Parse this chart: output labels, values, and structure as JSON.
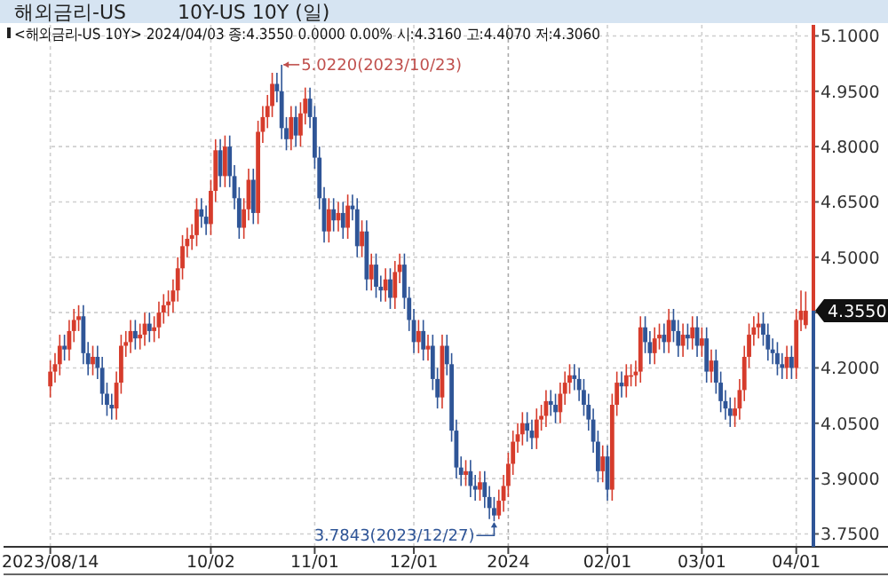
{
  "chart_data": {
    "type": "candlestick",
    "title": "해외금리-US",
    "subtitle": "10Y-US 10Y (일)",
    "annotations": [
      "<해외금리-US 10Y> 2024/04/03 종:4.3550 0.0000 0.00% 시:4.3160 고:4.4070 저:4.3060",
      "5.0220(2023/10/23)",
      "3.7843(2023/12/27)",
      "4.3550"
    ],
    "categories": [
      "2023/08/14",
      null,
      null,
      null,
      null,
      null,
      null,
      null,
      null,
      null,
      null,
      null,
      null,
      null,
      null,
      null,
      null,
      null,
      null,
      null,
      null,
      null,
      null,
      null,
      null,
      null,
      null,
      null,
      null,
      null,
      null,
      null,
      null,
      null,
      "10/02",
      null,
      null,
      null,
      null,
      null,
      null,
      null,
      null,
      null,
      null,
      null,
      null,
      null,
      null,
      null,
      null,
      null,
      null,
      null,
      null,
      null,
      "11/01",
      null,
      null,
      null,
      null,
      null,
      null,
      null,
      null,
      null,
      null,
      null,
      null,
      null,
      null,
      null,
      null,
      null,
      null,
      null,
      null,
      "12/01",
      null,
      null,
      null,
      null,
      null,
      null,
      null,
      null,
      null,
      null,
      null,
      null,
      null,
      null,
      null,
      null,
      null,
      null,
      null,
      "2024",
      null,
      null,
      null,
      null,
      null,
      null,
      null,
      null,
      null,
      null,
      null,
      null,
      null,
      null,
      null,
      null,
      null,
      null,
      null,
      null,
      "02/01",
      null,
      null,
      null,
      null,
      null,
      null,
      null,
      null,
      null,
      null,
      null,
      null,
      null,
      null,
      null,
      null,
      null,
      null,
      null,
      "03/01",
      null,
      null,
      null,
      null,
      null,
      null,
      null,
      null,
      null,
      null,
      null,
      null,
      null,
      null,
      null,
      null,
      null,
      null,
      null,
      "04/01",
      null,
      null
    ],
    "ohlc": [
      [
        4.15,
        4.22,
        4.12,
        4.19
      ],
      [
        4.19,
        4.24,
        4.16,
        4.21
      ],
      [
        4.21,
        4.29,
        4.18,
        4.26
      ],
      [
        4.26,
        4.29,
        4.22,
        4.25
      ],
      [
        4.25,
        4.33,
        4.22,
        4.3
      ],
      [
        4.3,
        4.36,
        4.27,
        4.33
      ],
      [
        4.33,
        4.37,
        4.3,
        4.34
      ],
      [
        4.34,
        4.37,
        4.21,
        4.24
      ],
      [
        4.24,
        4.27,
        4.18,
        4.21
      ],
      [
        4.21,
        4.26,
        4.18,
        4.23
      ],
      [
        4.23,
        4.26,
        4.17,
        4.2
      ],
      [
        4.2,
        4.23,
        4.1,
        4.13
      ],
      [
        4.13,
        4.16,
        4.07,
        4.1
      ],
      [
        4.1,
        4.13,
        4.06,
        4.09
      ],
      [
        4.09,
        4.19,
        4.06,
        4.16
      ],
      [
        4.16,
        4.29,
        4.13,
        4.26
      ],
      [
        4.26,
        4.3,
        4.23,
        4.27
      ],
      [
        4.27,
        4.33,
        4.24,
        4.3
      ],
      [
        4.3,
        4.33,
        4.25,
        4.28
      ],
      [
        4.28,
        4.32,
        4.25,
        4.29
      ],
      [
        4.29,
        4.35,
        4.26,
        4.32
      ],
      [
        4.32,
        4.35,
        4.27,
        4.3
      ],
      [
        4.3,
        4.34,
        4.27,
        4.31
      ],
      [
        4.31,
        4.38,
        4.28,
        4.35
      ],
      [
        4.35,
        4.4,
        4.32,
        4.37
      ],
      [
        4.37,
        4.41,
        4.34,
        4.38
      ],
      [
        4.38,
        4.44,
        4.35,
        4.41
      ],
      [
        4.41,
        4.5,
        4.38,
        4.47
      ],
      [
        4.47,
        4.56,
        4.44,
        4.53
      ],
      [
        4.53,
        4.58,
        4.5,
        4.55
      ],
      [
        4.55,
        4.59,
        4.52,
        4.56
      ],
      [
        4.56,
        4.66,
        4.53,
        4.63
      ],
      [
        4.63,
        4.66,
        4.58,
        4.61
      ],
      [
        4.61,
        4.64,
        4.56,
        4.59
      ],
      [
        4.59,
        4.71,
        4.56,
        4.68
      ],
      [
        4.68,
        4.82,
        4.65,
        4.79
      ],
      [
        4.79,
        4.82,
        4.69,
        4.72
      ],
      [
        4.72,
        4.83,
        4.69,
        4.8
      ],
      [
        4.8,
        4.83,
        4.69,
        4.72
      ],
      [
        4.72,
        4.75,
        4.63,
        4.66
      ],
      [
        4.66,
        4.69,
        4.55,
        4.58
      ],
      [
        4.58,
        4.66,
        4.55,
        4.63
      ],
      [
        4.63,
        4.74,
        4.6,
        4.71
      ],
      [
        4.71,
        4.74,
        4.59,
        4.62
      ],
      [
        4.62,
        4.87,
        4.59,
        4.84
      ],
      [
        4.84,
        4.91,
        4.81,
        4.88
      ],
      [
        4.88,
        4.94,
        4.85,
        4.91
      ],
      [
        4.91,
        5.0,
        4.88,
        4.97
      ],
      [
        4.97,
        5.0,
        4.92,
        4.95
      ],
      [
        4.95,
        5.022,
        4.82,
        4.85
      ],
      [
        4.85,
        4.88,
        4.79,
        4.82
      ],
      [
        4.82,
        4.91,
        4.79,
        4.88
      ],
      [
        4.88,
        4.91,
        4.8,
        4.83
      ],
      [
        4.83,
        4.92,
        4.8,
        4.89
      ],
      [
        4.89,
        4.96,
        4.86,
        4.93
      ],
      [
        4.93,
        4.96,
        4.85,
        4.88
      ],
      [
        4.88,
        4.91,
        4.74,
        4.77
      ],
      [
        4.77,
        4.8,
        4.63,
        4.66
      ],
      [
        4.66,
        4.69,
        4.54,
        4.57
      ],
      [
        4.57,
        4.66,
        4.54,
        4.63
      ],
      [
        4.63,
        4.66,
        4.57,
        4.6
      ],
      [
        4.6,
        4.65,
        4.57,
        4.62
      ],
      [
        4.62,
        4.65,
        4.55,
        4.58
      ],
      [
        4.58,
        4.67,
        4.55,
        4.64
      ],
      [
        4.64,
        4.67,
        4.6,
        4.63
      ],
      [
        4.63,
        4.66,
        4.5,
        4.53
      ],
      [
        4.53,
        4.6,
        4.5,
        4.57
      ],
      [
        4.57,
        4.6,
        4.41,
        4.44
      ],
      [
        4.44,
        4.51,
        4.41,
        4.48
      ],
      [
        4.48,
        4.51,
        4.39,
        4.42
      ],
      [
        4.42,
        4.45,
        4.38,
        4.41
      ],
      [
        4.41,
        4.47,
        4.38,
        4.44
      ],
      [
        4.44,
        4.47,
        4.36,
        4.39
      ],
      [
        4.39,
        4.49,
        4.36,
        4.46
      ],
      [
        4.46,
        4.51,
        4.43,
        4.48
      ],
      [
        4.48,
        4.51,
        4.36,
        4.39
      ],
      [
        4.39,
        4.42,
        4.3,
        4.33
      ],
      [
        4.33,
        4.36,
        4.24,
        4.27
      ],
      [
        4.27,
        4.33,
        4.24,
        4.3
      ],
      [
        4.3,
        4.33,
        4.22,
        4.25
      ],
      [
        4.25,
        4.29,
        4.22,
        4.26
      ],
      [
        4.26,
        4.29,
        4.14,
        4.17
      ],
      [
        4.17,
        4.2,
        4.09,
        4.12
      ],
      [
        4.12,
        4.29,
        4.09,
        4.26
      ],
      [
        4.26,
        4.29,
        4.18,
        4.21
      ],
      [
        4.21,
        4.24,
        4.0,
        4.03
      ],
      [
        4.03,
        4.06,
        3.9,
        3.93
      ],
      [
        3.93,
        3.96,
        3.88,
        3.91
      ],
      [
        3.91,
        3.95,
        3.88,
        3.92
      ],
      [
        3.92,
        3.95,
        3.85,
        3.88
      ],
      [
        3.88,
        3.91,
        3.84,
        3.87
      ],
      [
        3.87,
        3.92,
        3.84,
        3.89
      ],
      [
        3.89,
        3.92,
        3.82,
        3.85
      ],
      [
        3.85,
        3.88,
        3.79,
        3.82
      ],
      [
        3.82,
        3.85,
        3.7843,
        3.8
      ],
      [
        3.8,
        3.87,
        3.79,
        3.84
      ],
      [
        3.84,
        3.91,
        3.81,
        3.88
      ],
      [
        3.88,
        3.97,
        3.85,
        3.94
      ],
      [
        3.94,
        4.03,
        3.91,
        4.0
      ],
      [
        4.0,
        4.05,
        3.97,
        4.02
      ],
      [
        4.02,
        4.08,
        3.99,
        4.05
      ],
      [
        4.05,
        4.08,
        4.0,
        4.03
      ],
      [
        4.03,
        4.06,
        3.98,
        4.01
      ],
      [
        4.01,
        4.09,
        3.98,
        4.06
      ],
      [
        4.06,
        4.1,
        4.03,
        4.07
      ],
      [
        4.07,
        4.14,
        4.04,
        4.11
      ],
      [
        4.11,
        4.14,
        4.07,
        4.1
      ],
      [
        4.1,
        4.13,
        4.05,
        4.08
      ],
      [
        4.08,
        4.16,
        4.05,
        4.13
      ],
      [
        4.13,
        4.19,
        4.1,
        4.16
      ],
      [
        4.16,
        4.21,
        4.13,
        4.18
      ],
      [
        4.18,
        4.21,
        4.14,
        4.17
      ],
      [
        4.17,
        4.2,
        4.11,
        4.14
      ],
      [
        4.14,
        4.17,
        4.07,
        4.1
      ],
      [
        4.1,
        4.13,
        4.03,
        4.06
      ],
      [
        4.06,
        4.09,
        3.97,
        4.0
      ],
      [
        4.0,
        4.03,
        3.89,
        3.92
      ],
      [
        3.92,
        3.99,
        3.89,
        3.96
      ],
      [
        3.96,
        3.99,
        3.84,
        3.87
      ],
      [
        3.87,
        4.13,
        3.84,
        4.1
      ],
      [
        4.1,
        4.19,
        4.07,
        4.16
      ],
      [
        4.16,
        4.19,
        4.12,
        4.15
      ],
      [
        4.15,
        4.21,
        4.12,
        4.18
      ],
      [
        4.18,
        4.21,
        4.15,
        4.18
      ],
      [
        4.18,
        4.22,
        4.15,
        4.19
      ],
      [
        4.19,
        4.34,
        4.16,
        4.31
      ],
      [
        4.31,
        4.34,
        4.24,
        4.27
      ],
      [
        4.27,
        4.3,
        4.21,
        4.24
      ],
      [
        4.24,
        4.31,
        4.21,
        4.28
      ],
      [
        4.28,
        4.32,
        4.25,
        4.29
      ],
      [
        4.29,
        4.32,
        4.24,
        4.27
      ],
      [
        4.27,
        4.36,
        4.24,
        4.33
      ],
      [
        4.33,
        4.36,
        4.27,
        4.3
      ],
      [
        4.3,
        4.33,
        4.23,
        4.26
      ],
      [
        4.26,
        4.32,
        4.23,
        4.29
      ],
      [
        4.29,
        4.32,
        4.25,
        4.28
      ],
      [
        4.28,
        4.34,
        4.25,
        4.31
      ],
      [
        4.31,
        4.34,
        4.23,
        4.26
      ],
      [
        4.26,
        4.31,
        4.23,
        4.28
      ],
      [
        4.28,
        4.31,
        4.16,
        4.19
      ],
      [
        4.19,
        4.25,
        4.16,
        4.22
      ],
      [
        4.22,
        4.25,
        4.13,
        4.16
      ],
      [
        4.16,
        4.19,
        4.08,
        4.11
      ],
      [
        4.11,
        4.14,
        4.06,
        4.09
      ],
      [
        4.09,
        4.12,
        4.04,
        4.07
      ],
      [
        4.07,
        4.12,
        4.04,
        4.09
      ],
      [
        4.09,
        4.17,
        4.06,
        4.14
      ],
      [
        4.14,
        4.26,
        4.11,
        4.23
      ],
      [
        4.23,
        4.32,
        4.2,
        4.29
      ],
      [
        4.29,
        4.34,
        4.26,
        4.31
      ],
      [
        4.31,
        4.35,
        4.28,
        4.32
      ],
      [
        4.32,
        4.35,
        4.26,
        4.29
      ],
      [
        4.29,
        4.32,
        4.22,
        4.25
      ],
      [
        4.25,
        4.28,
        4.21,
        4.24
      ],
      [
        4.24,
        4.27,
        4.18,
        4.21
      ],
      [
        4.21,
        4.24,
        4.17,
        4.2
      ],
      [
        4.2,
        4.26,
        4.17,
        4.23
      ],
      [
        4.23,
        4.26,
        4.17,
        4.2
      ],
      [
        4.2,
        4.36,
        4.17,
        4.33
      ],
      [
        4.33,
        4.41,
        4.3,
        4.355
      ],
      [
        4.316,
        4.407,
        4.306,
        4.355
      ]
    ],
    "ylim": [
      3.715,
      5.13
    ],
    "yticks": [
      {
        "value": 3.75,
        "label": "3.7500"
      },
      {
        "value": 3.9,
        "label": "3.9000"
      },
      {
        "value": 4.05,
        "label": "4.0500"
      },
      {
        "value": 4.2,
        "label": "4.2000"
      },
      {
        "value": 4.35,
        "label": null
      },
      {
        "value": 4.5,
        "label": "4.5000"
      },
      {
        "value": 4.65,
        "label": "4.6500"
      },
      {
        "value": 4.8,
        "label": "4.8000"
      },
      {
        "value": 4.95,
        "label": "4.9500"
      },
      {
        "value": 5.1,
        "label": "5.1000"
      }
    ],
    "grid": true
  }
}
